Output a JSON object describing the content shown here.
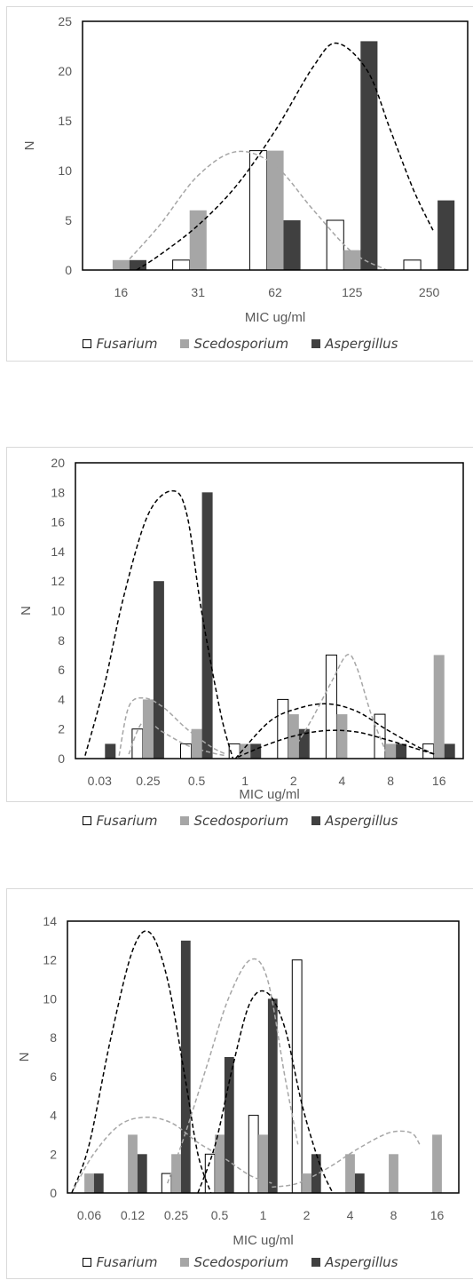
{
  "colors": {
    "fusarium": "#ffffff",
    "scedosporium": "#a6a6a6",
    "aspergillus": "#404040",
    "curve_light": "#a6a6a6",
    "curve_dark": "#000000",
    "axis": "#000000"
  },
  "chart_data": [
    {
      "type": "bar",
      "xlabel": "MIC ug/ml",
      "ylabel": "N",
      "ylim": [
        0,
        25
      ],
      "ytick_step": 5,
      "grid": false,
      "legend_position": "bottom",
      "categories": [
        "16",
        "31",
        "62",
        "125",
        "250"
      ],
      "series": [
        {
          "name": "Fusarium",
          "values": [
            0,
            1,
            12,
            5,
            1
          ]
        },
        {
          "name": "Scedosporium",
          "values": [
            1,
            6,
            12,
            2,
            0
          ]
        },
        {
          "name": "Aspergillus",
          "values": [
            1,
            0,
            5,
            23,
            7
          ]
        }
      ],
      "trendlines": [
        {
          "color": "curve_light",
          "x": [
            0.55,
            1.0,
            1.5,
            2.0,
            2.5,
            3.0,
            3.5,
            3.95
          ],
          "y": [
            0.6,
            4.5,
            9.5,
            11.9,
            10.5,
            6.0,
            1.8,
            0
          ]
        },
        {
          "color": "curve_dark",
          "x": [
            0.7,
            1.0,
            1.5,
            2.0,
            2.5,
            3.0,
            3.3,
            3.7,
            4.0,
            4.3,
            4.55
          ],
          "y": [
            0,
            1.5,
            4.5,
            8.5,
            14.0,
            20.5,
            22.8,
            20.0,
            14.0,
            8.0,
            4.0
          ]
        }
      ]
    },
    {
      "type": "bar",
      "xlabel": "MIC ug/ml",
      "ylabel": "N",
      "ylim": [
        0,
        20
      ],
      "ytick_step": 2,
      "grid": false,
      "legend_position": "bottom",
      "categories": [
        "0.03",
        "0.25",
        "0.5",
        "1",
        "2",
        "4",
        "8",
        "16"
      ],
      "series": [
        {
          "name": "Fusarium",
          "values": [
            0,
            2,
            1,
            1,
            4,
            7,
            3,
            1
          ]
        },
        {
          "name": "Scedosporium",
          "values": [
            0,
            4,
            2,
            1,
            3,
            3,
            1,
            7
          ]
        },
        {
          "name": "Aspergillus",
          "values": [
            1,
            12,
            18,
            1,
            2,
            0,
            1,
            1
          ]
        }
      ],
      "trendlines": [
        {
          "color": "curve_dark",
          "x": [
            0.2,
            0.6,
            1.0,
            1.5,
            2.0,
            2.3,
            2.6,
            3.0,
            3.25
          ],
          "y": [
            0.2,
            5.0,
            11.0,
            16.5,
            18.1,
            16.5,
            10.0,
            3.0,
            0
          ]
        },
        {
          "color": "curve_light",
          "x": [
            0.9,
            1.1,
            1.4,
            1.8,
            2.3,
            2.8,
            3.1
          ],
          "y": [
            0.2,
            3.5,
            4.1,
            3.5,
            2.0,
            0.8,
            0.3
          ]
        },
        {
          "color": "curve_light",
          "x": [
            1.1,
            1.4,
            1.8,
            2.3,
            2.8,
            3.1
          ],
          "y": [
            0.3,
            2.5,
            1.8,
            0.9,
            0.4,
            0.2
          ]
        },
        {
          "color": "curve_light",
          "x": [
            4.5,
            4.9,
            5.3,
            5.6,
            5.8,
            6.1,
            6.4
          ],
          "y": [
            0.6,
            2.8,
            5.3,
            7.0,
            6.2,
            3.0,
            0.5
          ]
        },
        {
          "color": "curve_dark",
          "x": [
            3.3,
            4.0,
            4.6,
            5.2,
            5.8,
            6.4,
            7.0,
            7.4
          ],
          "y": [
            0,
            2.5,
            3.4,
            3.7,
            3.2,
            2.0,
            0.9,
            0.3
          ]
        },
        {
          "color": "curve_dark",
          "x": [
            3.35,
            4.0,
            4.6,
            5.2,
            5.8,
            6.4,
            7.0,
            7.4
          ],
          "y": [
            0.1,
            1.0,
            1.6,
            1.9,
            1.8,
            1.3,
            0.7,
            0.3
          ]
        }
      ]
    },
    {
      "type": "bar",
      "xlabel": "MIC ug/ml",
      "ylabel": "N",
      "ylim": [
        0,
        14
      ],
      "ytick_step": 2,
      "grid": false,
      "legend_position": "bottom",
      "categories": [
        "0.06",
        "0.12",
        "0.25",
        "0.5",
        "1",
        "2",
        "4",
        "8",
        "16"
      ],
      "series": [
        {
          "name": "Fusarium",
          "values": [
            0,
            0,
            1,
            2,
            4,
            12,
            0,
            0,
            0
          ]
        },
        {
          "name": "Scedosporium",
          "values": [
            1,
            3,
            2,
            3,
            3,
            1,
            2,
            2,
            3
          ]
        },
        {
          "name": "Aspergillus",
          "values": [
            1,
            2,
            13,
            7,
            10,
            2,
            1,
            0,
            0
          ]
        }
      ],
      "trendlines": [
        {
          "color": "curve_dark",
          "x": [
            0.1,
            0.5,
            1.0,
            1.5,
            1.9,
            2.3,
            2.7,
            3.0,
            3.3
          ],
          "y": [
            0,
            2.5,
            8.0,
            12.5,
            13.4,
            11.0,
            6.0,
            2.0,
            0
          ]
        },
        {
          "color": "curve_light",
          "x": [
            0.15,
            0.6,
            1.2,
            1.8,
            2.4,
            3.0,
            3.6,
            4.2,
            4.7
          ],
          "y": [
            0.2,
            2.0,
            3.5,
            3.9,
            3.6,
            2.6,
            1.8,
            0.9,
            0.5
          ]
        },
        {
          "color": "curve_light",
          "x": [
            2.3,
            2.7,
            3.2,
            3.7,
            4.2,
            4.6,
            5.0,
            5.3
          ],
          "y": [
            0.5,
            3.0,
            6.5,
            10.0,
            12.0,
            11.0,
            6.0,
            2.5
          ]
        },
        {
          "color": "curve_dark",
          "x": [
            3.0,
            3.4,
            3.8,
            4.2,
            4.6,
            5.0,
            5.4,
            5.8,
            6.1
          ],
          "y": [
            0,
            2.5,
            6.5,
            9.8,
            10.3,
            8.5,
            4.5,
            1.5,
            0
          ]
        },
        {
          "color": "curve_light",
          "x": [
            4.7,
            5.3,
            6.0,
            6.7,
            7.4,
            7.9,
            8.1
          ],
          "y": [
            0.3,
            0.5,
            1.3,
            2.3,
            3.1,
            3.1,
            2.5
          ]
        }
      ]
    }
  ]
}
